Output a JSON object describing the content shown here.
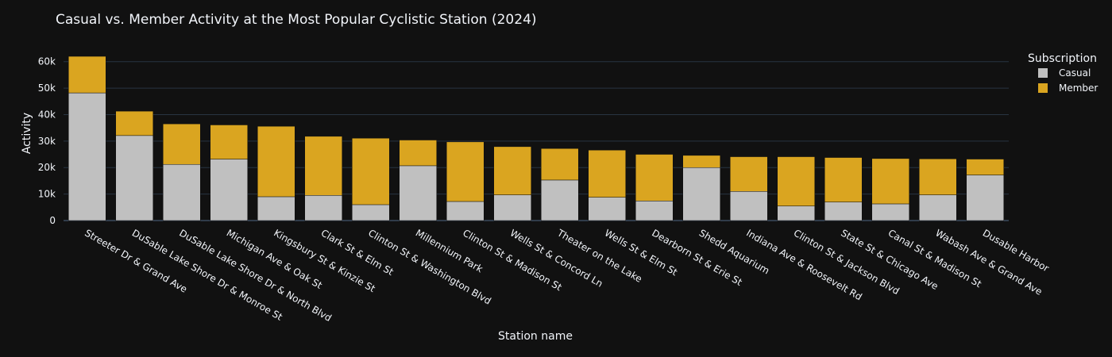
{
  "chart_data": {
    "type": "bar",
    "barmode": "stack",
    "title": "Casual vs. Member Activity at the Most Popular Cyclistic Station (2024)",
    "xlabel": "Station name",
    "ylabel": "Activity",
    "ylim": [
      0,
      65000
    ],
    "yticks": [
      0,
      10000,
      20000,
      30000,
      40000,
      50000,
      60000
    ],
    "ytick_labels": [
      "0",
      "10k",
      "20k",
      "30k",
      "40k",
      "50k",
      "60k"
    ],
    "grid": true,
    "legend": {
      "title": "Subscription",
      "placement": "top-right"
    },
    "categories": [
      "Streeter Dr & Grand Ave",
      "DuSable Lake Shore Dr & Monroe St",
      "DuSable Lake Shore Dr & North Blvd",
      "Michigan Ave & Oak St",
      "Kingsbury St & Kinzie St",
      "Clark St & Elm St",
      "Clinton St & Washington Blvd",
      "Millennium Park",
      "Clinton St & Madison St",
      "Wells St & Concord Ln",
      "Theater on the Lake",
      "Wells St & Elm St",
      "Dearborn St & Erie St",
      "Shedd Aquarium",
      "Indiana Ave & Roosevelt Rd",
      "Clinton St & Jackson Blvd",
      "State St & Chicago Ave",
      "Canal St & Madison St",
      "Wabash Ave & Grand Ave",
      "Dusable Harbor"
    ],
    "series": [
      {
        "name": "Casual",
        "color": "#c0c0c0",
        "values": [
          48200,
          32100,
          21200,
          23200,
          9000,
          9500,
          6000,
          20700,
          7200,
          9700,
          15300,
          8800,
          7400,
          20000,
          11000,
          5500,
          7000,
          6300,
          9700,
          17200
        ]
      },
      {
        "name": "Member",
        "color": "#daa520",
        "values": [
          13800,
          9200,
          15300,
          12900,
          26600,
          22300,
          25100,
          9700,
          22500,
          18200,
          11900,
          17800,
          17600,
          4600,
          13100,
          18600,
          16800,
          17100,
          13600,
          6000
        ]
      }
    ]
  },
  "colors": {
    "background": "#111111",
    "grid": "#283442",
    "text": "#f2f5fa"
  }
}
